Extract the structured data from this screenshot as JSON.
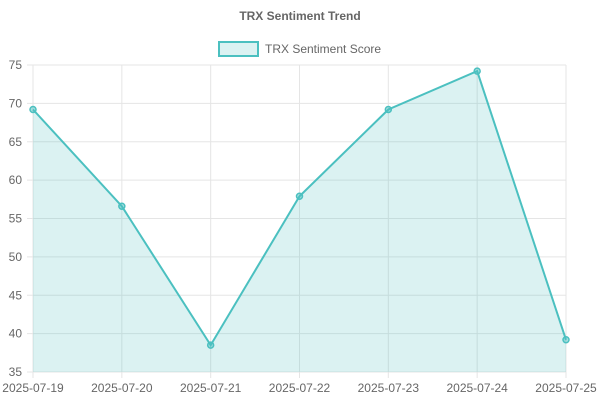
{
  "chart_data": {
    "type": "area",
    "title": "TRX Sentiment Trend",
    "xlabel": "",
    "ylabel": "",
    "categories": [
      "2025-07-19",
      "2025-07-20",
      "2025-07-21",
      "2025-07-22",
      "2025-07-23",
      "2025-07-24",
      "2025-07-25"
    ],
    "series": [
      {
        "name": "TRX Sentiment Score",
        "values": [
          69.2,
          56.6,
          38.5,
          57.9,
          69.2,
          74.2,
          39.2
        ],
        "color": "#4bc0c0",
        "fill": "rgba(75,192,192,0.2)"
      }
    ],
    "ylim": [
      35,
      75
    ],
    "yticks": [
      35,
      40,
      45,
      50,
      55,
      60,
      65,
      70,
      75
    ],
    "grid": true,
    "legend_position": "top"
  }
}
